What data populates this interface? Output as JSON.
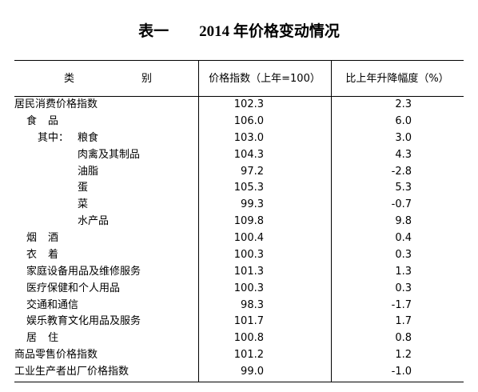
{
  "title": "表一　　2014 年价格变动情况",
  "table": {
    "header": [
      "类别",
      "价格指数（上年=100）",
      "比上年升降幅度（%）"
    ],
    "subheading": "其中：",
    "rows": [
      [
        "居民消费价格指数",
        "102.3",
        "2.3"
      ],
      [
        "食品",
        "106.0",
        "6.0"
      ],
      [
        "粮食",
        "103.0",
        "3.0"
      ],
      [
        "肉禽及其制品",
        "104.3",
        "4.3"
      ],
      [
        "油脂",
        "97.2",
        "-2.8"
      ],
      [
        "蛋",
        "105.3",
        "5.3"
      ],
      [
        "菜",
        "99.3",
        "-0.7"
      ],
      [
        "水产品",
        "109.8",
        "9.8"
      ],
      [
        "烟酒",
        "100.4",
        "0.4"
      ],
      [
        "衣着",
        "100.3",
        "0.3"
      ],
      [
        "家庭设备用品及维修服务",
        "101.3",
        "1.3"
      ],
      [
        "医疗保健和个人用品",
        "100.3",
        "0.3"
      ],
      [
        "交通和通信",
        "98.3",
        "-1.7"
      ],
      [
        "娱乐教育文化用品及服务",
        "101.7",
        "1.7"
      ],
      [
        "居住",
        "100.8",
        "0.8"
      ],
      [
        "商品零售价格指数",
        "101.2",
        "1.2"
      ],
      [
        "工业生产者出厂价格指数",
        "99.0",
        "-1.0"
      ]
    ]
  }
}
